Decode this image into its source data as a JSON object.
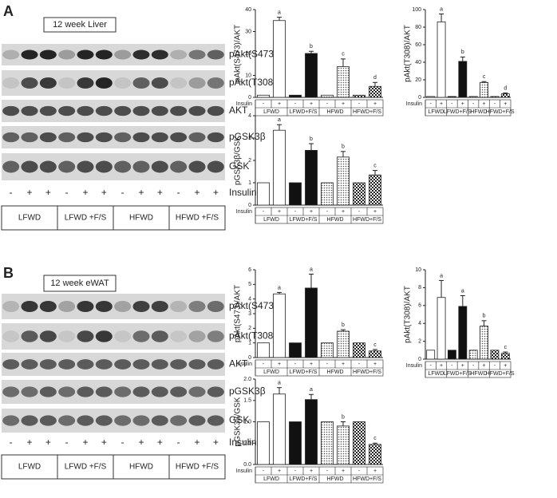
{
  "chart_data": [
    {
      "type": "bar",
      "ylabel": "pAkt(S473)/AKT",
      "row_label": "Insulin",
      "categories": [
        "-",
        "+",
        "-",
        "+",
        "-",
        "+",
        "-",
        "+"
      ],
      "groups": [
        "LFWD",
        "LFWD+F/S",
        "HFWD",
        "HFWD+F/S"
      ],
      "fills": [
        "white",
        "white",
        "black",
        "black",
        "dots",
        "dots",
        "checker",
        "checker"
      ],
      "values": [
        1,
        35,
        1,
        20,
        1,
        14,
        1,
        5
      ],
      "errors": [
        null,
        1.5,
        null,
        1,
        null,
        3.5,
        null,
        1.8
      ],
      "annotations": [
        null,
        "a",
        null,
        "b",
        null,
        "c",
        null,
        "d"
      ],
      "ylim": [
        0,
        40
      ],
      "yticks": [
        0,
        10,
        20,
        30,
        40
      ]
    },
    {
      "type": "bar",
      "ylabel": "pAkt(T308)/AKT",
      "row_label": "Insulin",
      "categories": [
        "-",
        "+",
        "-",
        "+",
        "-",
        "+",
        "-",
        "+"
      ],
      "groups": [
        "LFWD",
        "LFWD+F/S",
        "HFWD",
        "HFWD+F/S"
      ],
      "fills": [
        "white",
        "white",
        "black",
        "black",
        "dots",
        "dots",
        "checker",
        "checker"
      ],
      "values": [
        1,
        86,
        1,
        41,
        1,
        17,
        1,
        4
      ],
      "errors": [
        null,
        9,
        null,
        5,
        null,
        1,
        null,
        1
      ],
      "annotations": [
        null,
        "a",
        null,
        "b",
        null,
        "c",
        null,
        "d"
      ],
      "ylim": [
        0,
        100
      ],
      "yticks": [
        0,
        20,
        40,
        60,
        80,
        100
      ]
    },
    {
      "type": "bar",
      "ylabel": "pGSK3β/GSK",
      "row_label": "Insulin",
      "categories": [
        "-",
        "+",
        "-",
        "+",
        "-",
        "+",
        "-",
        "+"
      ],
      "groups": [
        "LFWD",
        "LFWD+F/S",
        "HFWD",
        "HFWD+F/S"
      ],
      "fills": [
        "white",
        "white",
        "black",
        "black",
        "dots",
        "dots",
        "checker",
        "checker"
      ],
      "values": [
        1,
        3.35,
        1,
        2.45,
        1,
        2.15,
        1,
        1.35
      ],
      "errors": [
        null,
        0.25,
        null,
        0.3,
        null,
        0.25,
        null,
        0.2
      ],
      "annotations": [
        null,
        "a",
        null,
        "b",
        null,
        "b",
        null,
        "c"
      ],
      "ylim": [
        0,
        4
      ],
      "yticks": [
        0,
        1,
        2,
        3,
        4
      ]
    },
    {
      "type": "bar",
      "ylabel": "pAkt(S473)/AKT",
      "row_label": "Insulin",
      "categories": [
        "-",
        "+",
        "-",
        "+",
        "-",
        "+",
        "-",
        "+"
      ],
      "groups": [
        "LFWD",
        "LFWD+F/S",
        "HFWD",
        "HFWD+F/S"
      ],
      "fills": [
        "white",
        "white",
        "black",
        "black",
        "dots",
        "dots",
        "checker",
        "checker"
      ],
      "values": [
        1,
        4.35,
        1,
        4.75,
        1,
        1.8,
        1,
        0.45
      ],
      "errors": [
        null,
        0.1,
        null,
        0.95,
        null,
        0.1,
        null,
        0.1
      ],
      "annotations": [
        null,
        "a",
        null,
        "a",
        null,
        "b",
        null,
        "c"
      ],
      "ylim": [
        0,
        6
      ],
      "yticks": [
        0,
        1,
        2,
        3,
        4,
        5,
        6
      ]
    },
    {
      "type": "bar",
      "ylabel": "pAkt(T308)/AKT",
      "row_label": "Insulin",
      "categories": [
        "-",
        "+",
        "-",
        "+",
        "-",
        "+",
        "-",
        "+"
      ],
      "groups": [
        "LFWD",
        "LFWD+F/S",
        "HFWD",
        "HFWD+F/S"
      ],
      "fills": [
        "white",
        "white",
        "black",
        "black",
        "dots",
        "dots",
        "checker",
        "checker"
      ],
      "values": [
        1,
        6.9,
        1,
        5.9,
        1,
        3.7,
        1,
        0.65
      ],
      "errors": [
        null,
        1.9,
        null,
        1.2,
        null,
        0.6,
        null,
        0.15
      ],
      "annotations": [
        null,
        "a",
        null,
        "a",
        null,
        "b",
        null,
        "c"
      ],
      "ylim": [
        0,
        10
      ],
      "yticks": [
        0,
        2,
        4,
        6,
        8,
        10
      ]
    },
    {
      "type": "bar",
      "ylabel": "pGSK3β/GSK",
      "row_label": "Insulin",
      "categories": [
        "-",
        "+",
        "-",
        "+",
        "-",
        "+",
        "-",
        "+"
      ],
      "groups": [
        "LFWD",
        "LFWD+F/S",
        "HFWD",
        "HFWD+F/S"
      ],
      "fills": [
        "white",
        "white",
        "black",
        "black",
        "dots",
        "dots",
        "checker",
        "checker"
      ],
      "values": [
        1,
        1.65,
        1,
        1.52,
        1,
        0.9,
        1,
        0.47
      ],
      "errors": [
        null,
        0.15,
        null,
        0.12,
        null,
        0.1,
        null,
        0.03
      ],
      "annotations": [
        null,
        "a",
        null,
        "a",
        null,
        "b",
        null,
        "c"
      ],
      "ylim": [
        0,
        2
      ],
      "yticks": [
        {
          "value": 0,
          "label": "0.0"
        },
        {
          "value": 0.5,
          "label": "0.5"
        },
        {
          "value": 1,
          "label": "1.0"
        },
        {
          "value": 1.5,
          "label": "1.5"
        },
        {
          "value": 2,
          "label": "2.0"
        }
      ]
    }
  ],
  "blots": [
    {
      "letter": "A",
      "title": "12 week Liver",
      "rows": [
        "pAkt(S473)",
        "pAkt(T308)",
        "AKT",
        "pGSK3β",
        "GSK"
      ],
      "insulin": [
        "-",
        "+",
        "+",
        "-",
        "+",
        "+",
        "-",
        "+",
        "+",
        "-",
        "+",
        "+"
      ],
      "insulin_label": "Insulin",
      "groups": [
        "LFWD",
        "LFWD +F/S",
        "HFWD",
        "HFWD +F/S"
      ]
    },
    {
      "letter": "B",
      "title": "12 week eWAT",
      "rows": [
        "pAkt(S473)",
        "pAkt(T308)",
        "AKT",
        "pGSK3β",
        "GSK"
      ],
      "insulin": [
        "-",
        "+",
        "+",
        "-",
        "+",
        "+",
        "-",
        "+",
        "+",
        "-",
        "+",
        "+"
      ],
      "insulin_label": "Insulin",
      "groups": [
        "LFWD",
        "LFWD +F/S",
        "HFWD",
        "HFWD +F/S"
      ]
    }
  ]
}
